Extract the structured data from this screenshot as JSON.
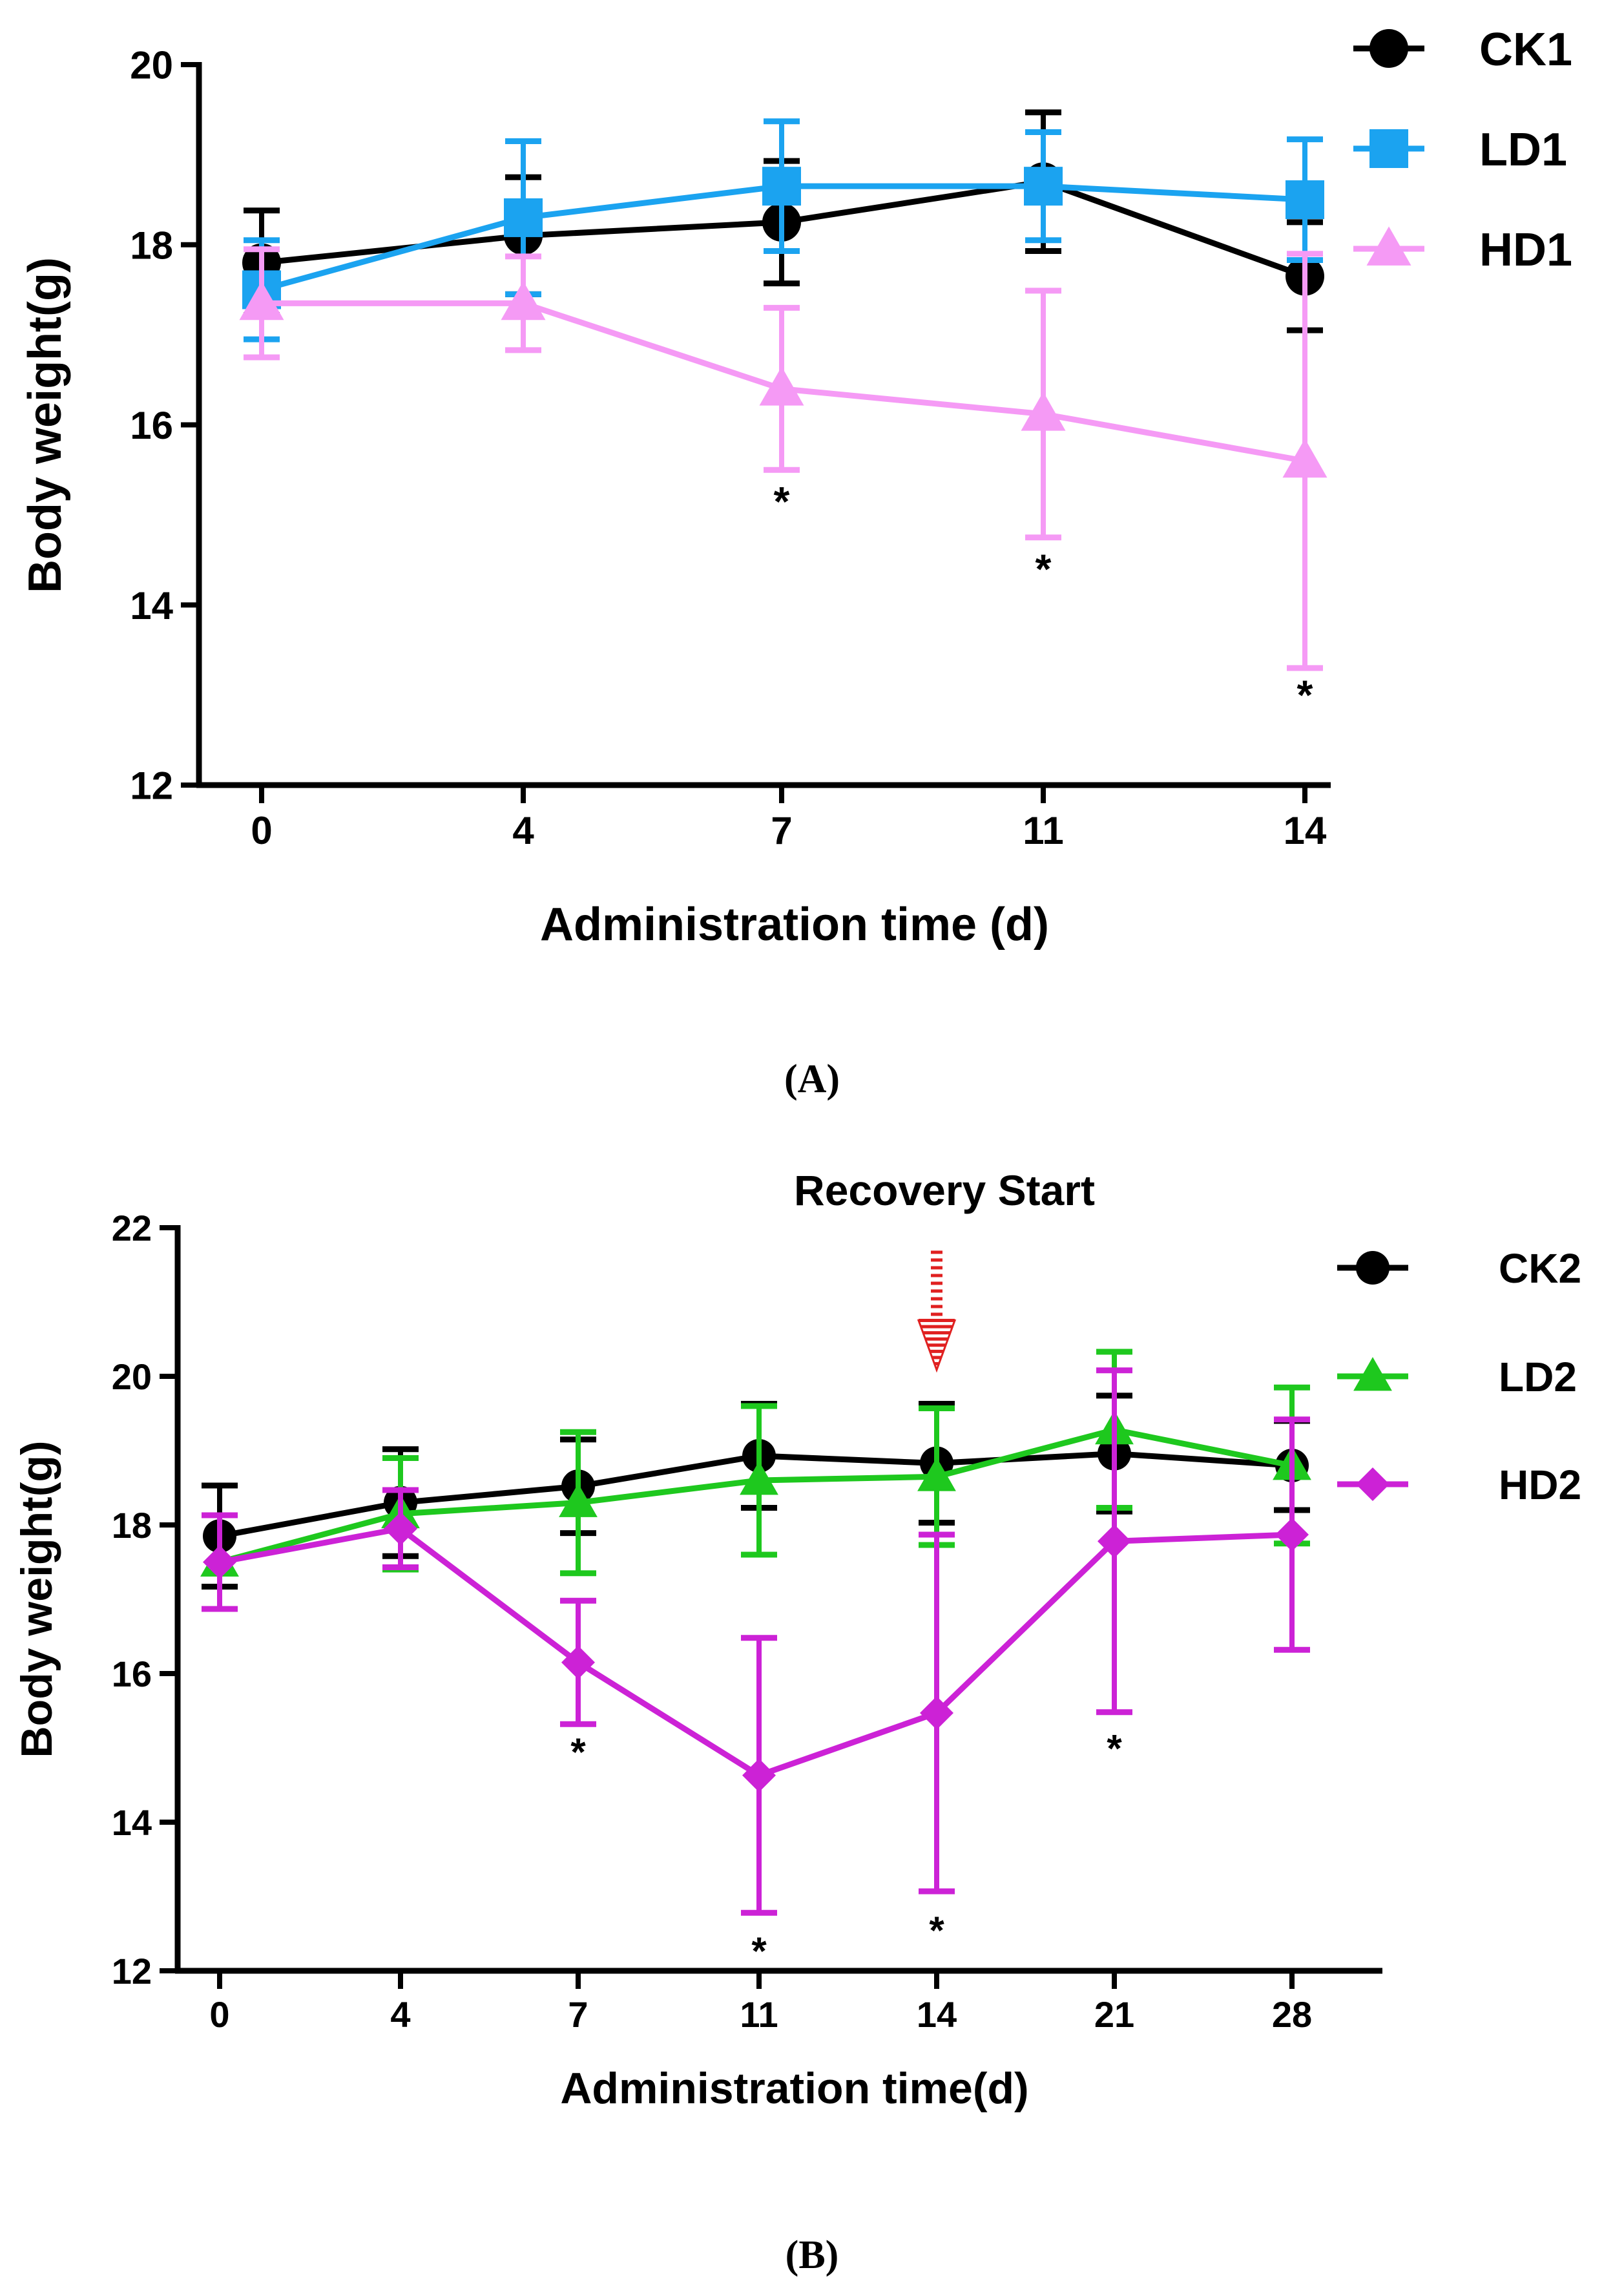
{
  "chart_data": [
    {
      "id": "A",
      "type": "line",
      "panel_label": "(A)",
      "xlabel": "Administration time (d)",
      "ylabel": "Body weight(g)",
      "categories": [
        "0",
        "4",
        "7",
        "11",
        "14"
      ],
      "x": [
        0,
        4,
        7,
        11,
        14
      ],
      "ylim": [
        12,
        20
      ],
      "yticks": [
        "12",
        "14",
        "16",
        "18",
        "20"
      ],
      "ytick_values": [
        12,
        14,
        16,
        18,
        20
      ],
      "legend_position": "top-right",
      "series": [
        {
          "name": "CK1",
          "color": "#000000",
          "marker": "circle",
          "values": [
            17.8,
            18.1,
            18.25,
            18.7,
            17.65
          ],
          "errors": [
            0.58,
            0.65,
            0.68,
            0.77,
            0.6
          ]
        },
        {
          "name": "LD1",
          "color": "#1ba3f0",
          "marker": "square",
          "values": [
            17.5,
            18.3,
            18.65,
            18.65,
            18.5
          ],
          "errors": [
            0.55,
            0.85,
            0.72,
            0.6,
            0.67
          ]
        },
        {
          "name": "HD1",
          "color": "#f59af5",
          "marker": "triangle",
          "values": [
            17.35,
            17.35,
            16.4,
            16.12,
            15.6
          ],
          "errors": [
            0.6,
            0.52,
            0.9,
            1.37,
            2.3
          ]
        }
      ],
      "annotations": [
        {
          "text": "*",
          "x": 7,
          "y": 15.2
        },
        {
          "text": "*",
          "x": 11,
          "y": 14.45
        },
        {
          "text": "*",
          "x": 14,
          "y": 13.05
        }
      ]
    },
    {
      "id": "B",
      "type": "line",
      "panel_label": "(B)",
      "title": "Recovery Start",
      "xlabel": "Administration time(d)",
      "ylabel": "Body weight(g)",
      "categories": [
        "0",
        "4",
        "7",
        "11",
        "14",
        "21",
        "28"
      ],
      "x": [
        0,
        4,
        7,
        11,
        14,
        21,
        28
      ],
      "ylim": [
        12,
        22
      ],
      "yticks": [
        "12",
        "14",
        "16",
        "18",
        "20",
        "22"
      ],
      "ytick_values": [
        12,
        14,
        16,
        18,
        20,
        22
      ],
      "legend_position": "top-right",
      "arrow_at_category": "14",
      "arrow_color": "#e02020",
      "series": [
        {
          "name": "CK2",
          "color": "#000000",
          "marker": "circle",
          "values": [
            17.85,
            18.3,
            18.52,
            18.93,
            18.83,
            18.96,
            18.8
          ],
          "errors": [
            0.68,
            0.72,
            0.63,
            0.7,
            0.8,
            0.78,
            0.6
          ]
        },
        {
          "name": "LD2",
          "color": "#1ec81e",
          "marker": "triangle",
          "values": [
            17.5,
            18.15,
            18.3,
            18.6,
            18.65,
            19.28,
            18.8
          ],
          "errors": [
            0.63,
            0.75,
            0.95,
            1.0,
            0.92,
            1.05,
            1.05
          ]
        },
        {
          "name": "HD2",
          "color": "#cc22d6",
          "marker": "diamond",
          "values": [
            17.5,
            17.95,
            16.15,
            14.63,
            15.47,
            17.78,
            17.87
          ],
          "errors": [
            0.63,
            0.52,
            0.83,
            1.85,
            2.4,
            2.3,
            1.55
          ]
        }
      ],
      "annotations": [
        {
          "text": "*",
          "x": 7,
          "y": 15.0
        },
        {
          "text": "*",
          "x": 11,
          "y": 12.32
        },
        {
          "text": "*",
          "x": 14,
          "y": 12.6
        },
        {
          "text": "*",
          "x": 21,
          "y": 15.05
        }
      ]
    }
  ]
}
